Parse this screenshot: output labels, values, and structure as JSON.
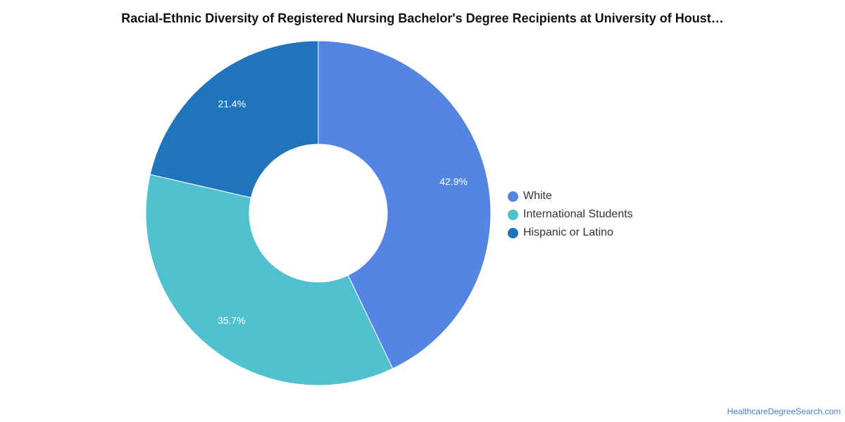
{
  "title": "Racial-Ethnic Diversity of Registered Nursing Bachelor's Degree Recipients at University of Houst…",
  "credit": "HealthcareDegreeSearch.com",
  "chart_data": {
    "type": "pie",
    "variant": "donut",
    "title": "Racial-Ethnic Diversity of Registered Nursing Bachelor's Degree Recipients at University of Houst…",
    "legend_position": "right",
    "slices": [
      {
        "label": "White",
        "value": 42.9,
        "display": "42.9%",
        "color": "#5585e3"
      },
      {
        "label": "International Students",
        "value": 35.7,
        "display": "35.7%",
        "color": "#50c1cf"
      },
      {
        "label": "Hispanic or Latino",
        "value": 21.4,
        "display": "21.4%",
        "color": "#1f74bc"
      }
    ]
  }
}
